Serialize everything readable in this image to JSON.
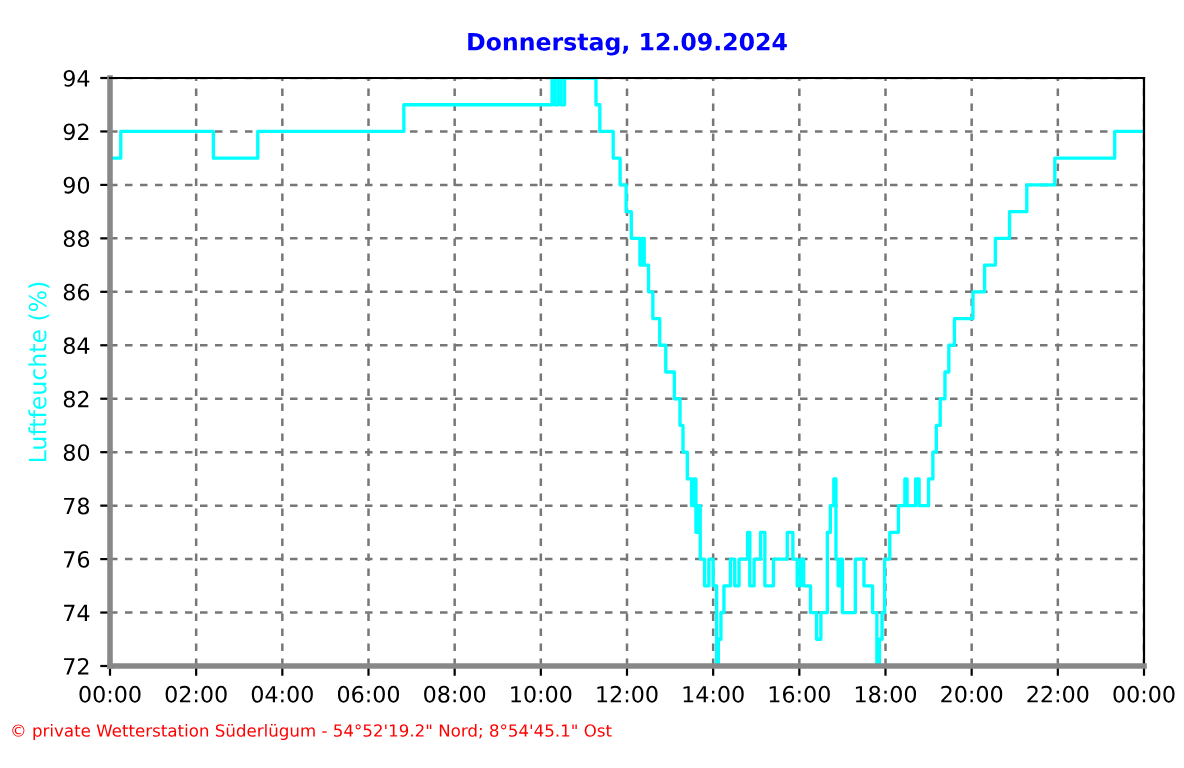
{
  "chart_data": {
    "type": "step",
    "title": "Donnerstag, 12.09.2024",
    "ylabel": "Luftfeuchte (%)",
    "annotations": [
      "© private Wetterstation Süderlügum - 54°52'19.2\" Nord; 8°54'45.1\" Ost"
    ],
    "x": [
      0,
      0.25,
      2.4,
      3.43,
      6.82,
      10.26,
      10.32,
      10.4,
      10.47,
      10.55,
      11.28,
      11.37,
      11.68,
      11.84,
      11.98,
      12.1,
      12.3,
      12.35,
      12.4,
      12.5,
      12.6,
      12.76,
      12.9,
      13.1,
      13.23,
      13.3,
      13.4,
      13.5,
      13.55,
      13.6,
      13.65,
      13.7,
      13.8,
      13.9,
      14.0,
      14.08,
      14.12,
      14.18,
      14.25,
      14.4,
      14.5,
      14.6,
      14.8,
      14.85,
      14.95,
      15.1,
      15.2,
      15.4,
      15.72,
      15.85,
      15.95,
      16.03,
      16.1,
      16.26,
      16.4,
      16.5,
      16.65,
      16.72,
      16.8,
      16.85,
      16.9,
      16.95,
      17.0,
      17.3,
      17.5,
      17.7,
      17.8,
      17.86,
      17.92,
      17.98,
      18.03,
      18.1,
      18.3,
      18.45,
      18.5,
      18.7,
      18.78,
      19.0,
      19.1,
      19.18,
      19.27,
      19.38,
      19.47,
      19.6,
      20.03,
      20.3,
      20.55,
      20.88,
      21.28,
      21.93,
      23.32,
      24
    ],
    "values": [
      91,
      92,
      91,
      92,
      93,
      94,
      93,
      94,
      93,
      94,
      93,
      92,
      91,
      90,
      89,
      88,
      87,
      88,
      87,
      86,
      85,
      84,
      83,
      82,
      81,
      80,
      79,
      78,
      79,
      77,
      78,
      76,
      75,
      76,
      75,
      72,
      73,
      74,
      75,
      76,
      75,
      76,
      77,
      75,
      76,
      77,
      75,
      76,
      77,
      76,
      75,
      76,
      75,
      74,
      73,
      74,
      77,
      78,
      79,
      76,
      75,
      76,
      74,
      76,
      75,
      74,
      72,
      73,
      74,
      76,
      76,
      77,
      78,
      79,
      78,
      79,
      78,
      79,
      80,
      81,
      82,
      83,
      84,
      85,
      86,
      87,
      88,
      89,
      90,
      91,
      92,
      92
    ],
    "color": "#00ffff",
    "xlim": [
      0,
      24
    ],
    "ylim": [
      72,
      94
    ],
    "xticks": [
      {
        "value": 0,
        "label": "00:00"
      },
      {
        "value": 2,
        "label": "02:00"
      },
      {
        "value": 4,
        "label": "04:00"
      },
      {
        "value": 6,
        "label": "06:00"
      },
      {
        "value": 8,
        "label": "08:00"
      },
      {
        "value": 10,
        "label": "10:00"
      },
      {
        "value": 12,
        "label": "12:00"
      },
      {
        "value": 14,
        "label": "14:00"
      },
      {
        "value": 16,
        "label": "16:00"
      },
      {
        "value": 18,
        "label": "18:00"
      },
      {
        "value": 20,
        "label": "20:00"
      },
      {
        "value": 22,
        "label": "22:00"
      },
      {
        "value": 24,
        "label": "00:00"
      }
    ],
    "yticks": [
      72,
      74,
      76,
      78,
      80,
      82,
      84,
      86,
      88,
      90,
      92,
      94
    ],
    "grid": true,
    "line_style": "solid",
    "legend": false
  }
}
